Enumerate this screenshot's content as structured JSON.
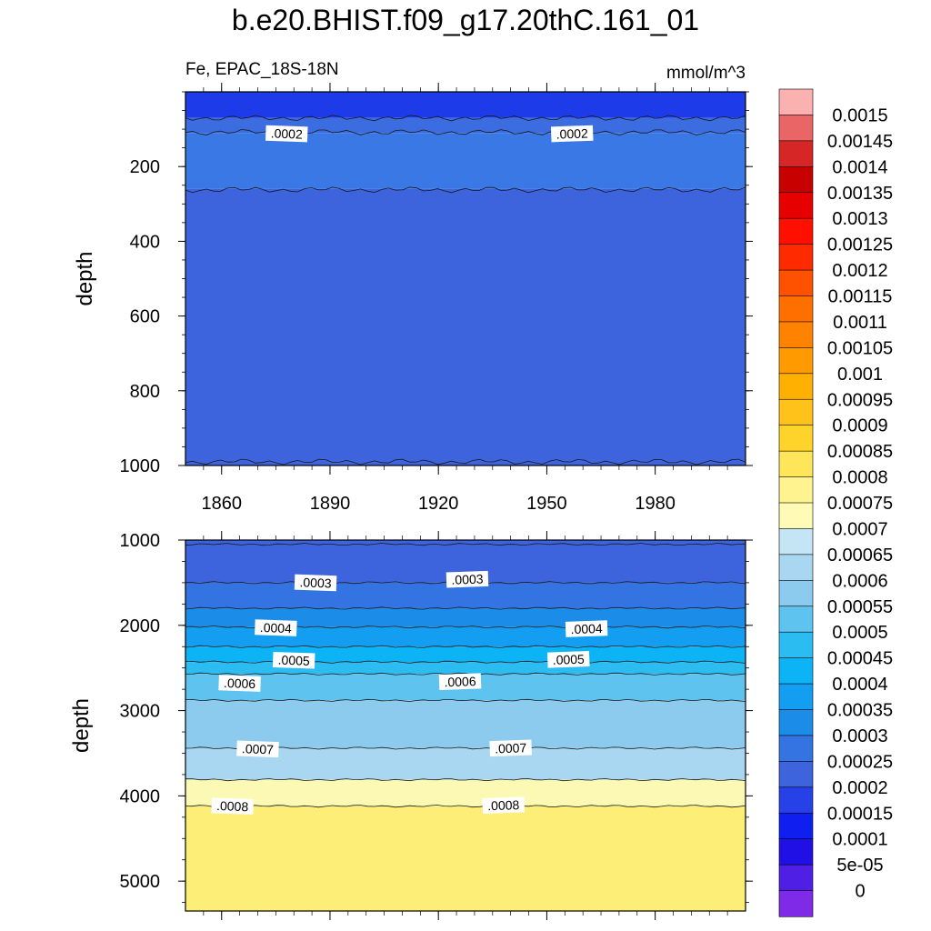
{
  "chart_data": {
    "type": "contour",
    "title": "b.e20.BHIST.f09_g17.20thC.161_01",
    "variable_label": "Fe, EPAC_18S-18N",
    "units": "mmol/m^3",
    "x_ticks": [
      1860,
      1890,
      1920,
      1950,
      1980
    ],
    "x_range": [
      1850,
      2005
    ],
    "panels": [
      {
        "name": "upper",
        "ylabel": "depth",
        "yrange": [
          0,
          1000
        ],
        "yticks": [
          200,
          400,
          600,
          800,
          1000
        ],
        "levels": [
          {
            "depth_from": 0,
            "depth_to": 70,
            "value": 0.00015,
            "color": "#1e3bea"
          },
          {
            "depth_from": 70,
            "depth_to": 110,
            "value": 0.00025,
            "color": "#3c6de0"
          },
          {
            "depth_from": 110,
            "depth_to": 260,
            "value": 0.00025,
            "color": "#3a78e6"
          },
          {
            "depth_from": 260,
            "depth_to": 1000,
            "value": 0.0002,
            "color": "#3d63dd"
          }
        ],
        "contour_lines": [
          70,
          108,
          262,
          990
        ],
        "contour_labels": [
          {
            "text": ".0002",
            "year": 1878,
            "depth": 112
          },
          {
            "text": ".0002",
            "year": 1957,
            "depth": 112
          }
        ]
      },
      {
        "name": "lower",
        "ylabel": "depth",
        "yrange": [
          1000,
          5350
        ],
        "yticks": [
          1000,
          2000,
          3000,
          4000,
          5000
        ],
        "levels": [
          {
            "depth_from": 1000,
            "depth_to": 1500,
            "value": 0.00025,
            "color": "#3d63dd"
          },
          {
            "depth_from": 1500,
            "depth_to": 1800,
            "value": 0.0003,
            "color": "#3474e2"
          },
          {
            "depth_from": 1800,
            "depth_to": 2020,
            "value": 0.00035,
            "color": "#1c8ce9"
          },
          {
            "depth_from": 2020,
            "depth_to": 2250,
            "value": 0.0004,
            "color": "#139ef1"
          },
          {
            "depth_from": 2250,
            "depth_to": 2430,
            "value": 0.00045,
            "color": "#0cb3f5"
          },
          {
            "depth_from": 2430,
            "depth_to": 2570,
            "value": 0.0005,
            "color": "#2bbcf2"
          },
          {
            "depth_from": 2570,
            "depth_to": 2880,
            "value": 0.00055,
            "color": "#5fc3ef"
          },
          {
            "depth_from": 2880,
            "depth_to": 3440,
            "value": 0.0006,
            "color": "#8dcbee"
          },
          {
            "depth_from": 3440,
            "depth_to": 3810,
            "value": 0.00065,
            "color": "#a9d6f0"
          },
          {
            "depth_from": 3810,
            "depth_to": 4120,
            "value": 0.0007,
            "color": "#fcf9b4"
          },
          {
            "depth_from": 4120,
            "depth_to": 5350,
            "value": 0.00085,
            "color": "#fdee78"
          }
        ],
        "contour_lines": [
          1050,
          1500,
          1800,
          2020,
          2250,
          2430,
          2570,
          2880,
          3440,
          3810,
          4120
        ],
        "contour_labels": [
          {
            "text": ".0003",
            "year": 1886,
            "depth": 1500
          },
          {
            "text": ".0003",
            "year": 1928,
            "depth": 1460
          },
          {
            "text": ".0004",
            "year": 1875,
            "depth": 2030
          },
          {
            "text": ".0004",
            "year": 1961,
            "depth": 2040
          },
          {
            "text": ".0005",
            "year": 1880,
            "depth": 2410
          },
          {
            "text": ".0005",
            "year": 1956,
            "depth": 2400
          },
          {
            "text": ".0006",
            "year": 1865,
            "depth": 2680
          },
          {
            "text": ".0006",
            "year": 1926,
            "depth": 2660
          },
          {
            "text": ".0007",
            "year": 1870,
            "depth": 3450
          },
          {
            "text": ".0007",
            "year": 1940,
            "depth": 3440
          },
          {
            "text": ".0008",
            "year": 1863,
            "depth": 4120
          },
          {
            "text": ".0008",
            "year": 1938,
            "depth": 4110
          }
        ]
      }
    ],
    "colorbar": {
      "labels": [
        "0.0015",
        "0.00145",
        "0.0014",
        "0.00135",
        "0.0013",
        "0.00125",
        "0.0012",
        "0.00115",
        "0.0011",
        "0.00105",
        "0.001",
        "0.00095",
        "0.0009",
        "0.00085",
        "0.0008",
        "0.00075",
        "0.0007",
        "0.00065",
        "0.0006",
        "0.00055",
        "0.0005",
        "0.00045",
        "0.0004",
        "0.00035",
        "0.0003",
        "0.00025",
        "0.0002",
        "0.00015",
        "0.0001",
        "5e-05",
        "0"
      ],
      "colors": [
        "#fcb1b1",
        "#ea6565",
        "#d62626",
        "#c80000",
        "#e60000",
        "#ff0f00",
        "#ff2a00",
        "#ff5200",
        "#ff6f00",
        "#ff8200",
        "#ff9a00",
        "#ffb000",
        "#ffc21a",
        "#ffd42a",
        "#ffe55a",
        "#fff38f",
        "#fffab5",
        "#c5e5f4",
        "#a9d6f0",
        "#8dcbee",
        "#5fc3ef",
        "#2bbcf2",
        "#0cb3f5",
        "#139ef1",
        "#1c8ce9",
        "#3474e2",
        "#3d63dd",
        "#2641e8",
        "#0f1ff0",
        "#2010e5",
        "#4f1fe6",
        "#7f2ae6"
      ]
    }
  }
}
